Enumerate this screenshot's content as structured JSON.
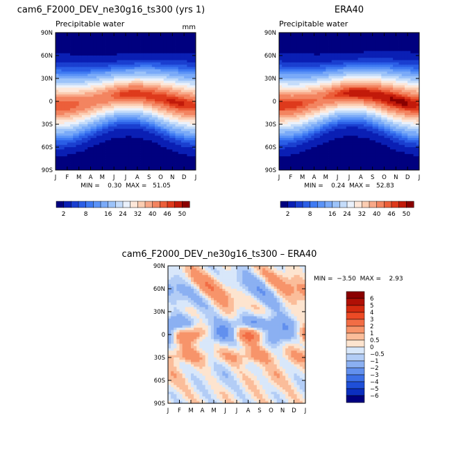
{
  "chart_data": [
    {
      "type": "heatmap",
      "title": "cam6_F2000_DEV_ne30g16_ts300 (yrs 1)",
      "subtitle": "Precipitable water",
      "units": "mm",
      "x": [
        "J",
        "F",
        "M",
        "A",
        "M",
        "J",
        "J",
        "A",
        "S",
        "O",
        "N",
        "D",
        "J"
      ],
      "y": [
        "90N",
        "60N",
        "30N",
        "0",
        "30S",
        "60S",
        "90S"
      ],
      "ylim": [
        -90,
        90
      ],
      "stats": "MIN =    0.30  MAX =   51.05",
      "min": 0.3,
      "max": 51.05,
      "peak_lat": 2,
      "peak_amp": 8,
      "peak_base": 42
    },
    {
      "type": "heatmap",
      "title": "ERA40",
      "subtitle": "Precipitable water",
      "y": [
        "90N",
        "60N",
        "30N",
        "0",
        "30S",
        "60S",
        "90S"
      ],
      "x": [
        "J",
        "F",
        "M",
        "A",
        "M",
        "J",
        "J",
        "A",
        "S",
        "O",
        "N",
        "D",
        "J"
      ],
      "ylim": [
        -90,
        90
      ],
      "stats": "MIN =    0.24  MAX =   52.83",
      "min": 0.24,
      "max": 52.83,
      "peak_lat": 3,
      "peak_amp": 9,
      "peak_base": 44
    },
    {
      "type": "heatmap",
      "title": "cam6_F2000_DEV_ne30g16_ts300 – ERA40",
      "x": [
        "J",
        "F",
        "M",
        "A",
        "M",
        "J",
        "J",
        "A",
        "S",
        "O",
        "N",
        "D",
        "J"
      ],
      "y": [
        "90N",
        "60N",
        "30N",
        "0",
        "30S",
        "60S",
        "90S"
      ],
      "ylim": [
        -90,
        90
      ],
      "stats": "MIN =  −3.50  MAX =    2.93",
      "min": -3.5,
      "max": 2.93
    }
  ],
  "colorbar_abs": {
    "labels": [
      "2",
      "8",
      "16",
      "24",
      "32",
      "40",
      "46",
      "50"
    ],
    "levels": [
      2,
      4,
      6,
      8,
      10,
      12,
      16,
      20,
      24,
      28,
      32,
      36,
      40,
      44,
      46,
      48,
      50
    ],
    "colors": [
      "#00007f",
      "#0a1fb4",
      "#1a3fd0",
      "#2b5ee6",
      "#3f7af2",
      "#5b93f7",
      "#7aaaf8",
      "#9cc3f9",
      "#c4dcfa",
      "#eaf1fb",
      "#fde7d9",
      "#fbcdb2",
      "#f8a888",
      "#f38460",
      "#ec5f3a",
      "#de3a1c",
      "#c21a0a",
      "#8a0000"
    ]
  },
  "colorbar_diff": {
    "labels": [
      "6",
      "5",
      "4",
      "3",
      "2",
      "1",
      "0.5",
      "0",
      "−0.5",
      "−1",
      "−2",
      "−3",
      "−4",
      "−5",
      "−6"
    ],
    "levels": [
      6,
      5,
      4,
      3,
      2,
      1,
      0.5,
      0,
      -0.5,
      -1,
      -2,
      -3,
      -4,
      -5,
      -6
    ],
    "colors": [
      "#8a0000",
      "#b01005",
      "#d42a0f",
      "#ec4a25",
      "#f26d45",
      "#f7946a",
      "#fbbd9a",
      "#fde4cf",
      "#d8e7fa",
      "#b3cdf6",
      "#8bb0f2",
      "#6290ee",
      "#3c6fe6",
      "#1f4fd8",
      "#0b2fbf",
      "#00007f"
    ]
  }
}
